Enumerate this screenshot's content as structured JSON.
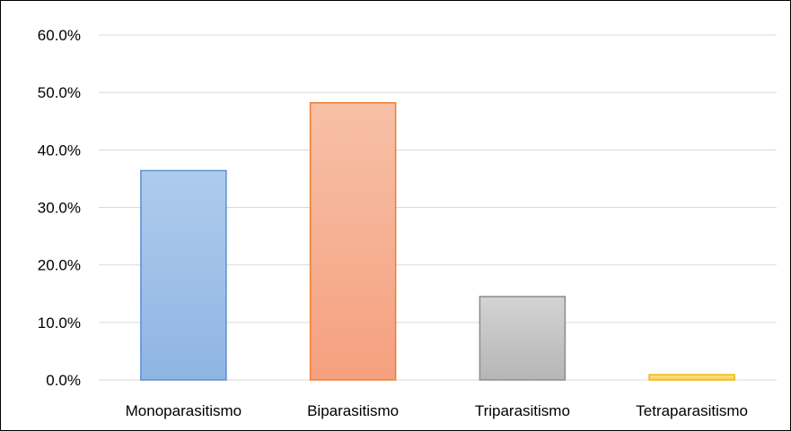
{
  "chart_data": {
    "type": "bar",
    "categories": [
      "Monoparasitismo",
      "Biparasitismo",
      "Triparasitismo",
      "Tetraparasitismo"
    ],
    "values": [
      36.4,
      48.2,
      14.5,
      0.9
    ],
    "value_format": "percent",
    "ylim": [
      0,
      60
    ],
    "yticks": [
      "0.0%",
      "10.0%",
      "20.0%",
      "30.0%",
      "40.0%",
      "50.0%",
      "60.0%"
    ],
    "ytick_values": [
      0,
      10,
      20,
      30,
      40,
      50,
      60
    ],
    "grid": true,
    "legend": "none",
    "title": "",
    "xlabel": "",
    "ylabel": "",
    "bar_styles": [
      {
        "top": "#aecbec",
        "bottom": "#8fb5e3",
        "stroke": "#5b8fd1"
      },
      {
        "top": "#f7c0a7",
        "bottom": "#f5a07f",
        "stroke": "#ed7d31"
      },
      {
        "top": "#d3d3d3",
        "bottom": "#b6b6b6",
        "stroke": "#8c8c8c"
      },
      {
        "top": "#ffe08a",
        "bottom": "#ffd058",
        "stroke": "#f0b800"
      }
    ],
    "grid_color": "#d9d9d9"
  }
}
